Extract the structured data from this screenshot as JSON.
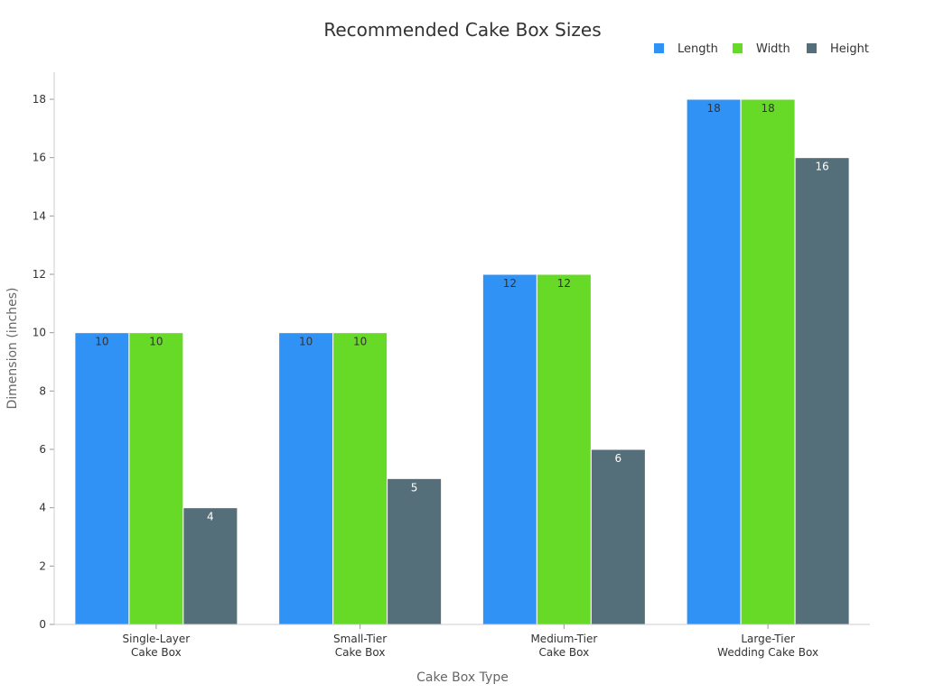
{
  "chart_data": {
    "type": "bar",
    "title": "Recommended Cake Box Sizes",
    "xlabel": "Cake Box Type",
    "ylabel": "Dimension (inches)",
    "ylim": [
      0,
      19
    ],
    "yticks": [
      0,
      2,
      4,
      6,
      8,
      10,
      12,
      14,
      16,
      18
    ],
    "categories": [
      [
        "Single-Layer",
        "Cake Box"
      ],
      [
        "Small-Tier",
        "Cake Box"
      ],
      [
        "Medium-Tier",
        "Cake Box"
      ],
      [
        "Large-Tier",
        "Wedding Cake Box"
      ]
    ],
    "series": [
      {
        "name": "Length",
        "color": "#3092f5",
        "label_color": "#333333",
        "values": [
          10,
          10,
          12,
          18
        ]
      },
      {
        "name": "Width",
        "color": "#66da26",
        "label_color": "#333333",
        "values": [
          10,
          10,
          12,
          18
        ]
      },
      {
        "name": "Height",
        "color": "#546e7a",
        "label_color": "#ffffff",
        "values": [
          4,
          5,
          6,
          16
        ]
      }
    ],
    "legend_position": "top-right",
    "grid": false
  }
}
